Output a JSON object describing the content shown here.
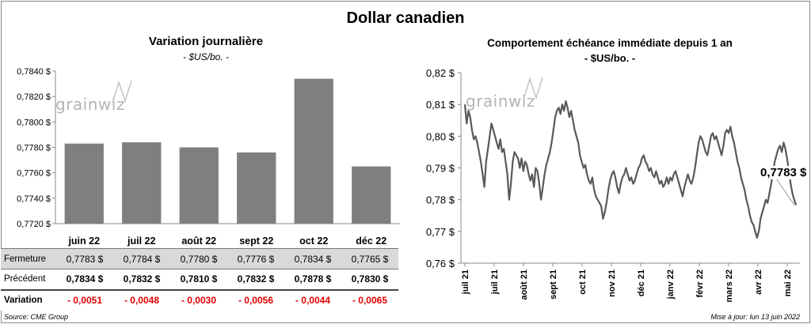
{
  "title": "Dollar canadien",
  "left_chart": {
    "title": "Variation  journalière",
    "subtitle": "- $US/bo. -",
    "watermark": "grainwiz"
  },
  "right_chart": {
    "title": "Comportement échéance immédiate depuis 1 an",
    "subtitle": "- $US/bo. -",
    "watermark": "grainwiz",
    "last_label": "0,7783 $"
  },
  "table": {
    "rows": [
      {
        "label": "Fermeture",
        "values": [
          "0,7783  $",
          "0,7784  $",
          "0,7780  $",
          "0,7776  $",
          "0,7834  $",
          "0,7765  $"
        ]
      },
      {
        "label": "Précédent",
        "values": [
          "0,7834  $",
          "0,7832  $",
          "0,7810  $",
          "0,7832  $",
          "0,7878  $",
          "0,7830  $"
        ]
      },
      {
        "label": "Variation",
        "values": [
          "- 0,0051",
          "- 0,0048",
          "- 0,0030",
          "- 0,0056",
          "- 0,0044",
          "- 0,0065"
        ]
      }
    ]
  },
  "footer": {
    "source": "Source: CME Group",
    "updated": "Mise à jour: lun 13 juin 2022"
  },
  "colors": {
    "bar": "#7f7f7f",
    "line": "#595959",
    "negative": "#e00000",
    "grid": "#d9d9d9"
  },
  "chart_data": [
    {
      "type": "bar",
      "title": "Variation  journalière",
      "subtitle": "- $US/bo. -",
      "categories": [
        "juin 22",
        "juil 22",
        "août 22",
        "sept 22",
        "oct 22",
        "déc 22"
      ],
      "values": [
        0.7783,
        0.7784,
        0.778,
        0.7776,
        0.7834,
        0.7765
      ],
      "ylim": [
        0.772,
        0.784
      ],
      "yticks": [
        0.772,
        0.774,
        0.776,
        0.778,
        0.78,
        0.782,
        0.784
      ],
      "ytick_labels": [
        "0,7720 $",
        "0,7740 $",
        "0,7760 $",
        "0,7780 $",
        "0,7800 $",
        "0,7820 $",
        "0,7840 $"
      ],
      "grid": false
    },
    {
      "type": "line",
      "title": "Comportement échéance immédiate depuis 1 an",
      "subtitle": "- $US/bo. -",
      "ylim": [
        0.76,
        0.82
      ],
      "yticks": [
        0.76,
        0.77,
        0.78,
        0.79,
        0.8,
        0.81,
        0.82
      ],
      "ytick_labels": [
        "0,76 $",
        "0,77 $",
        "0,78 $",
        "0,79 $",
        "0,80 $",
        "0,81 $",
        "0,82 $"
      ],
      "xticks": [
        "juil 21",
        "juil 21",
        "août 21",
        "sept 21",
        "oct 21",
        "nov 21",
        "déc 21",
        "janv 22",
        "févr 22",
        "mars 22",
        "avr 22",
        "mai 22"
      ],
      "grid": false,
      "annotation": "0,7783 $",
      "series": [
        {
          "values": [
            0.81,
            0.804,
            0.808,
            0.806,
            0.802,
            0.799,
            0.8,
            0.798,
            0.795,
            0.792,
            0.788,
            0.784,
            0.792,
            0.796,
            0.8,
            0.804,
            0.802,
            0.8,
            0.798,
            0.796,
            0.799,
            0.795,
            0.796,
            0.792,
            0.788,
            0.78,
            0.785,
            0.792,
            0.795,
            0.794,
            0.793,
            0.79,
            0.793,
            0.789,
            0.792,
            0.791,
            0.788,
            0.786,
            0.788,
            0.784,
            0.79,
            0.789,
            0.785,
            0.78,
            0.784,
            0.788,
            0.791,
            0.793,
            0.795,
            0.798,
            0.802,
            0.806,
            0.808,
            0.809,
            0.807,
            0.81,
            0.808,
            0.811,
            0.809,
            0.806,
            0.808,
            0.805,
            0.802,
            0.8,
            0.798,
            0.794,
            0.792,
            0.79,
            0.791,
            0.788,
            0.786,
            0.785,
            0.787,
            0.783,
            0.781,
            0.78,
            0.779,
            0.778,
            0.774,
            0.776,
            0.779,
            0.783,
            0.786,
            0.788,
            0.789,
            0.787,
            0.784,
            0.782,
            0.785,
            0.787,
            0.788,
            0.79,
            0.788,
            0.786,
            0.787,
            0.785,
            0.786,
            0.788,
            0.79,
            0.791,
            0.793,
            0.794,
            0.792,
            0.791,
            0.789,
            0.79,
            0.788,
            0.787,
            0.789,
            0.787,
            0.785,
            0.786,
            0.784,
            0.785,
            0.787,
            0.785,
            0.787,
            0.786,
            0.788,
            0.789,
            0.787,
            0.785,
            0.783,
            0.781,
            0.784,
            0.786,
            0.788,
            0.786,
            0.785,
            0.787,
            0.79,
            0.794,
            0.798,
            0.8,
            0.799,
            0.797,
            0.795,
            0.794,
            0.797,
            0.8,
            0.801,
            0.799,
            0.8,
            0.798,
            0.796,
            0.794,
            0.797,
            0.801,
            0.802,
            0.801,
            0.803,
            0.8,
            0.798,
            0.795,
            0.792,
            0.79,
            0.787,
            0.785,
            0.783,
            0.78,
            0.778,
            0.775,
            0.773,
            0.772,
            0.77,
            0.768,
            0.77,
            0.774,
            0.776,
            0.778,
            0.78,
            0.779,
            0.782,
            0.785,
            0.788,
            0.792,
            0.794,
            0.796,
            0.797,
            0.795,
            0.798,
            0.796,
            0.793,
            0.789,
            0.785,
            0.782,
            0.78,
            0.7783
          ]
        }
      ]
    }
  ]
}
